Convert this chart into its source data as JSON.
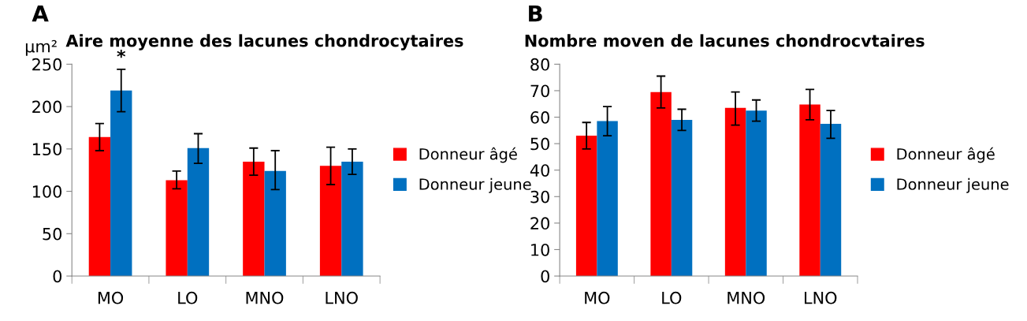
{
  "chart_data": [
    {
      "type": "bar",
      "title": "Aire moyenne des lacunes chondrocytaires",
      "ylabel": "µm²",
      "categories": [
        "MO",
        "LO",
        "MNO",
        "LNO"
      ],
      "series": [
        {
          "name": "Donneur âgé",
          "color": "#ff0000",
          "values": [
            164,
            113,
            135,
            130
          ],
          "errors": [
            [
              148,
              180
            ],
            [
              103,
              124
            ],
            [
              119,
              151
            ],
            [
              108,
              152
            ]
          ]
        },
        {
          "name": "Donneur jeune",
          "color": "#0070c0",
          "values": [
            219,
            151,
            124,
            135
          ],
          "errors": [
            [
              194,
              244
            ],
            [
              133,
              168
            ],
            [
              102,
              148
            ],
            [
              120,
              150
            ]
          ]
        }
      ],
      "ylim": [
        0,
        250
      ],
      "yticks": [
        0,
        50,
        100,
        150,
        200,
        250
      ],
      "grid": false,
      "legend": "right",
      "annotations": [
        "A",
        "*"
      ]
    },
    {
      "type": "bar",
      "title": "Nombre moven de lacunes chondrocvtaires",
      "categories": [
        "MO",
        "LO",
        "MNO",
        "LNO"
      ],
      "series": [
        {
          "name": "Donneur âgé",
          "color": "#ff0000",
          "values": [
            53,
            69.5,
            63.5,
            64.8
          ],
          "errors": [
            [
              48,
              58
            ],
            [
              63.5,
              75.5
            ],
            [
              57,
              69.5
            ],
            [
              59,
              70.5
            ]
          ]
        },
        {
          "name": "Donneur jeune",
          "color": "#0070c0",
          "values": [
            58.5,
            59,
            62.5,
            57.5
          ],
          "errors": [
            [
              53,
              64
            ],
            [
              55,
              63
            ],
            [
              58.5,
              66.5
            ],
            [
              52,
              62.5
            ]
          ]
        }
      ],
      "ylim": [
        0,
        80
      ],
      "yticks": [
        0,
        10,
        20,
        30,
        40,
        50,
        60,
        70,
        80
      ],
      "grid": false,
      "legend": "right",
      "annotations": [
        "B"
      ]
    }
  ]
}
